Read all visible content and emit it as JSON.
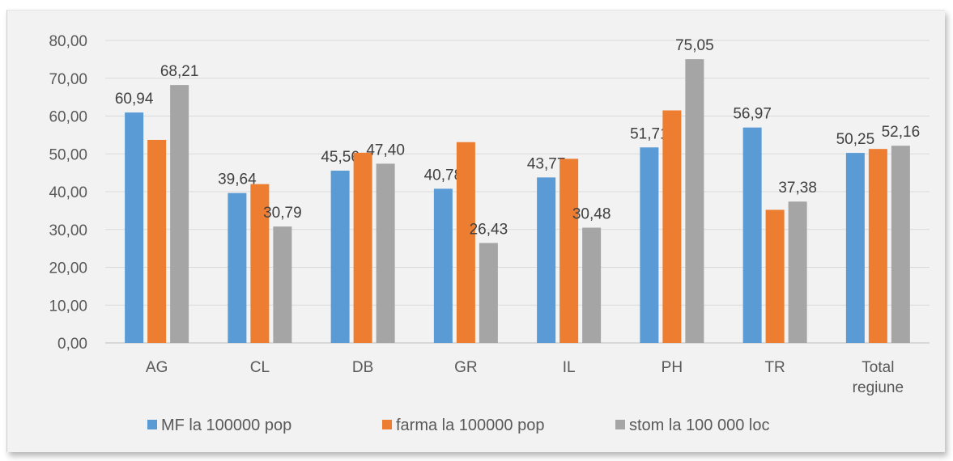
{
  "chart_data": {
    "type": "bar",
    "categories": [
      "AG",
      "CL",
      "DB",
      "GR",
      "IL",
      "PH",
      "TR",
      "Total regiune"
    ],
    "series": [
      {
        "name": "MF la 100000 pop",
        "color": "#5b9bd5",
        "values": [
          60.94,
          39.64,
          45.56,
          40.78,
          43.77,
          51.71,
          56.97,
          50.25
        ],
        "labels": [
          "60,94",
          "39,64",
          "45,56",
          "40,78",
          "43,77",
          "51,71",
          "56,97",
          "50,25"
        ]
      },
      {
        "name": "farma la 100000 pop",
        "color": "#ed7d31",
        "values": [
          53.7,
          42.0,
          50.3,
          53.1,
          48.7,
          61.5,
          35.2,
          51.3
        ],
        "labels": [
          "",
          "",
          "",
          "",
          "",
          "",
          "",
          ""
        ]
      },
      {
        "name": "stom la 100 000 loc",
        "color": "#a5a5a5",
        "values": [
          68.21,
          30.79,
          47.4,
          26.43,
          30.48,
          75.05,
          37.38,
          52.16
        ],
        "labels": [
          "68,21",
          "30,79",
          "47,40",
          "26,43",
          "30,48",
          "75,05",
          "37,38",
          "52,16"
        ]
      }
    ],
    "ylim": [
      0,
      80
    ],
    "yticks": [
      "0,00",
      "10,00",
      "20,00",
      "30,00",
      "40,00",
      "50,00",
      "60,00",
      "70,00",
      "80,00"
    ],
    "title": "",
    "xlabel": "",
    "ylabel": "",
    "grid": true,
    "legend": "bottom"
  }
}
